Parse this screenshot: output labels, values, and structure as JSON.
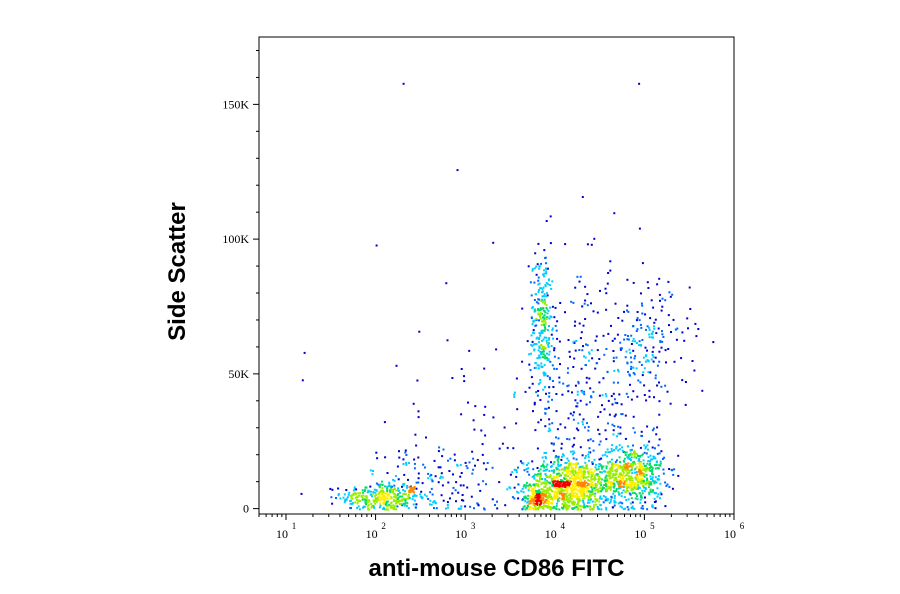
{
  "chart_data": {
    "type": "scatter",
    "subtype": "flow-cytometry density dot plot",
    "xlabel": "anti-mouse CD86 FITC",
    "ylabel": "Side Scatter",
    "x_scale": "log",
    "xlim": [
      5,
      1000000
    ],
    "ylim": [
      -2000,
      175000
    ],
    "x_ticks": [
      {
        "value": 10,
        "base": "10",
        "exp": "1"
      },
      {
        "value": 100,
        "base": "10",
        "exp": "2"
      },
      {
        "value": 1000,
        "base": "10",
        "exp": "3"
      },
      {
        "value": 10000,
        "base": "10",
        "exp": "4"
      },
      {
        "value": 100000,
        "base": "10",
        "exp": "5"
      },
      {
        "value": 1000000,
        "base": "10",
        "exp": "6"
      }
    ],
    "y_ticks": [
      {
        "value": 0,
        "label": "0"
      },
      {
        "value": 50000,
        "label": "50K"
      },
      {
        "value": 100000,
        "label": "100K"
      },
      {
        "value": 150000,
        "label": "150K"
      }
    ],
    "grid": false,
    "colormap": [
      "#0000cc",
      "#0066ff",
      "#00ccff",
      "#00dd66",
      "#99ee00",
      "#ffee00",
      "#ff8800",
      "#ee0000"
    ],
    "populations": [
      {
        "log10x_mean": 2.05,
        "log10x_sd": 0.22,
        "y_mean": 4500,
        "y_sd": 2800,
        "weight": 300
      },
      {
        "log10x_mean": 2.6,
        "log10x_sd": 0.4,
        "y_mean": 9000,
        "y_sd": 7000,
        "weight": 180
      },
      {
        "log10x_mean": 4.15,
        "log10x_sd": 0.25,
        "y_mean": 9000,
        "y_sd": 5000,
        "weight": 900
      },
      {
        "log10x_mean": 4.85,
        "log10x_sd": 0.18,
        "y_mean": 13000,
        "y_sd": 6000,
        "weight": 600
      },
      {
        "log10x_mean": 3.8,
        "log10x_sd": 0.08,
        "y_mean": 3500,
        "y_sd": 2000,
        "weight": 150
      },
      {
        "log10x_mean": 3.85,
        "log10x_sd": 0.07,
        "y_mean": 68000,
        "y_sd": 14000,
        "weight": 280
      },
      {
        "log10x_mean": 5.0,
        "log10x_sd": 0.25,
        "y_mean": 60000,
        "y_sd": 12000,
        "weight": 200
      },
      {
        "log10x_mean": 4.3,
        "log10x_sd": 0.35,
        "y_mean": 42000,
        "y_sd": 22000,
        "weight": 260
      },
      {
        "log10x_mean": 3.3,
        "log10x_sd": 0.7,
        "y_mean": 25000,
        "y_sd": 20000,
        "weight": 70
      }
    ],
    "outliers": [
      {
        "x": 200,
        "y": 158000
      },
      {
        "x": 85000,
        "y": 158000
      },
      {
        "x": 800,
        "y": 126000
      },
      {
        "x": 20000,
        "y": 116000
      },
      {
        "x": 100,
        "y": 98000
      },
      {
        "x": 2000,
        "y": 99000
      },
      {
        "x": 15,
        "y": 48000
      },
      {
        "x": 600,
        "y": 84000
      },
      {
        "x": 300,
        "y": 66000
      },
      {
        "x": 45000,
        "y": 110000
      }
    ]
  }
}
